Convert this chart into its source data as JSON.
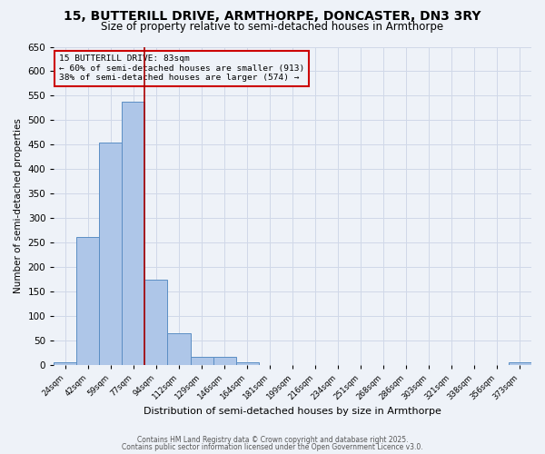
{
  "title_line1": "15, BUTTERILL DRIVE, ARMTHORPE, DONCASTER, DN3 3RY",
  "title_line2": "Size of property relative to semi-detached houses in Armthorpe",
  "xlabel": "Distribution of semi-detached houses by size in Armthorpe",
  "ylabel": "Number of semi-detached properties",
  "categories": [
    "24sqm",
    "42sqm",
    "59sqm",
    "77sqm",
    "94sqm",
    "112sqm",
    "129sqm",
    "146sqm",
    "164sqm",
    "181sqm",
    "199sqm",
    "216sqm",
    "234sqm",
    "251sqm",
    "268sqm",
    "286sqm",
    "303sqm",
    "321sqm",
    "338sqm",
    "356sqm",
    "373sqm"
  ],
  "values": [
    5,
    262,
    455,
    537,
    175,
    65,
    17,
    17,
    5,
    0,
    0,
    0,
    0,
    0,
    0,
    0,
    0,
    0,
    0,
    0,
    5
  ],
  "bar_color": "#aec6e8",
  "bar_edge_color": "#5b8ec4",
  "grid_color": "#d0d8e8",
  "background_color": "#eef2f8",
  "annotation_box_text": "15 BUTTERILL DRIVE: 83sqm\n← 60% of semi-detached houses are smaller (913)\n38% of semi-detached houses are larger (574) →",
  "annotation_box_color": "#cc0000",
  "vline_pos": 3.5,
  "vline_color": "#aa0000",
  "ylim": [
    0,
    650
  ],
  "yticks": [
    0,
    50,
    100,
    150,
    200,
    250,
    300,
    350,
    400,
    450,
    500,
    550,
    600,
    650
  ],
  "footnote1": "Contains HM Land Registry data © Crown copyright and database right 2025.",
  "footnote2": "Contains public sector information licensed under the Open Government Licence v3.0.",
  "title_fontsize": 10,
  "subtitle_fontsize": 8.5,
  "bar_width": 1.0,
  "annot_fontsize": 6.8,
  "ylabel_fontsize": 7.5,
  "xlabel_fontsize": 8,
  "xtick_fontsize": 6.2,
  "ytick_fontsize": 7.5,
  "footnote_fontsize": 5.5
}
